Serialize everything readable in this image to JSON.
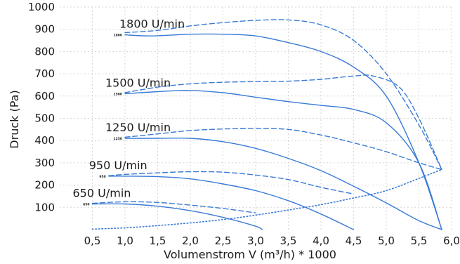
{
  "chart_data": {
    "type": "line",
    "title": "",
    "xlabel": "Volumenstrom V (m³/h) * 1000",
    "ylabel": "Druck (Pa)",
    "xlim": [
      0,
      6.0
    ],
    "ylim": [
      0,
      1000
    ],
    "xticks": [
      "0,5",
      "1,0",
      "1,5",
      "2,0",
      "2,5",
      "3,0",
      "3,5",
      "4,0",
      "4,5",
      "5,0",
      "5,5",
      "6,0"
    ],
    "yticks": [
      "100",
      "200",
      "300",
      "400",
      "500",
      "600",
      "700",
      "800",
      "900",
      "1000"
    ],
    "grid": true,
    "color": "#3a7bd5",
    "series": [
      {
        "name": "1800 U/min",
        "small_label": "1800",
        "style": "solid",
        "x": [
          1.0,
          1.4,
          2.0,
          2.5,
          3.0,
          3.5,
          4.0,
          4.5,
          5.0,
          5.5,
          5.85
        ],
        "y": [
          875,
          870,
          878,
          878,
          870,
          840,
          800,
          730,
          600,
          300,
          0
        ]
      },
      {
        "name": "",
        "style": "dashed",
        "x": [
          1.0,
          1.5,
          2.0,
          2.5,
          3.0,
          3.5,
          4.0,
          4.5,
          5.0,
          5.5,
          5.85
        ],
        "y": [
          885,
          895,
          915,
          930,
          940,
          942,
          920,
          850,
          700,
          470,
          270
        ]
      },
      {
        "name": "1500 U/min",
        "small_label": "1500",
        "style": "solid",
        "x": [
          1.0,
          1.5,
          2.0,
          2.5,
          3.0,
          3.5,
          4.0,
          4.5,
          5.0,
          5.5,
          5.85
        ],
        "y": [
          610,
          620,
          625,
          615,
          595,
          575,
          558,
          540,
          480,
          300,
          0
        ]
      },
      {
        "name": "",
        "style": "dashed",
        "x": [
          1.0,
          1.5,
          2.0,
          2.5,
          3.0,
          3.5,
          4.0,
          4.5,
          4.8,
          5.2,
          5.5,
          5.85
        ],
        "y": [
          615,
          640,
          655,
          662,
          665,
          667,
          675,
          690,
          690,
          640,
          500,
          270
        ]
      },
      {
        "name": "1250 U/min",
        "small_label": "1250",
        "style": "solid",
        "x": [
          1.0,
          1.5,
          2.0,
          2.5,
          3.0,
          3.5,
          4.0,
          4.5,
          5.0,
          5.5,
          5.85
        ],
        "y": [
          410,
          410,
          410,
          395,
          365,
          320,
          265,
          195,
          120,
          40,
          0
        ]
      },
      {
        "name": "",
        "style": "dashed",
        "x": [
          1.0,
          1.5,
          2.0,
          2.5,
          3.0,
          3.5,
          4.0,
          4.5,
          5.0,
          5.5,
          5.85
        ],
        "y": [
          415,
          430,
          445,
          452,
          455,
          450,
          425,
          390,
          350,
          300,
          270
        ]
      },
      {
        "name": "950 U/min",
        "small_label": "950",
        "style": "solid",
        "x": [
          0.75,
          1.0,
          1.5,
          2.0,
          2.5,
          3.0,
          3.5,
          4.0,
          4.5
        ],
        "y": [
          240,
          240,
          238,
          228,
          205,
          175,
          130,
          70,
          0
        ]
      },
      {
        "name": "",
        "style": "dashed",
        "x": [
          0.75,
          1.0,
          1.5,
          2.0,
          2.5,
          3.0,
          3.5,
          4.0,
          4.5
        ],
        "y": [
          242,
          248,
          255,
          260,
          258,
          245,
          225,
          190,
          160
        ]
      },
      {
        "name": "650 U/min",
        "small_label": "650",
        "style": "solid",
        "x": [
          0.5,
          1.0,
          1.5,
          2.0,
          2.5,
          3.0,
          3.1
        ],
        "y": [
          115,
          115,
          105,
          85,
          55,
          15,
          0
        ]
      },
      {
        "name": "",
        "style": "dashed",
        "x": [
          0.5,
          1.0,
          1.5,
          2.0,
          2.5,
          3.0
        ],
        "y": [
          118,
          125,
          122,
          110,
          95,
          75
        ]
      },
      {
        "name": "",
        "style": "dotted",
        "x": [
          0.5,
          1.0,
          1.5,
          2.0,
          2.5,
          3.0,
          3.5,
          4.0,
          4.5,
          5.0,
          5.5,
          5.85
        ],
        "y": [
          2,
          8,
          18,
          30,
          45,
          65,
          88,
          112,
          142,
          175,
          230,
          270
        ]
      }
    ]
  }
}
